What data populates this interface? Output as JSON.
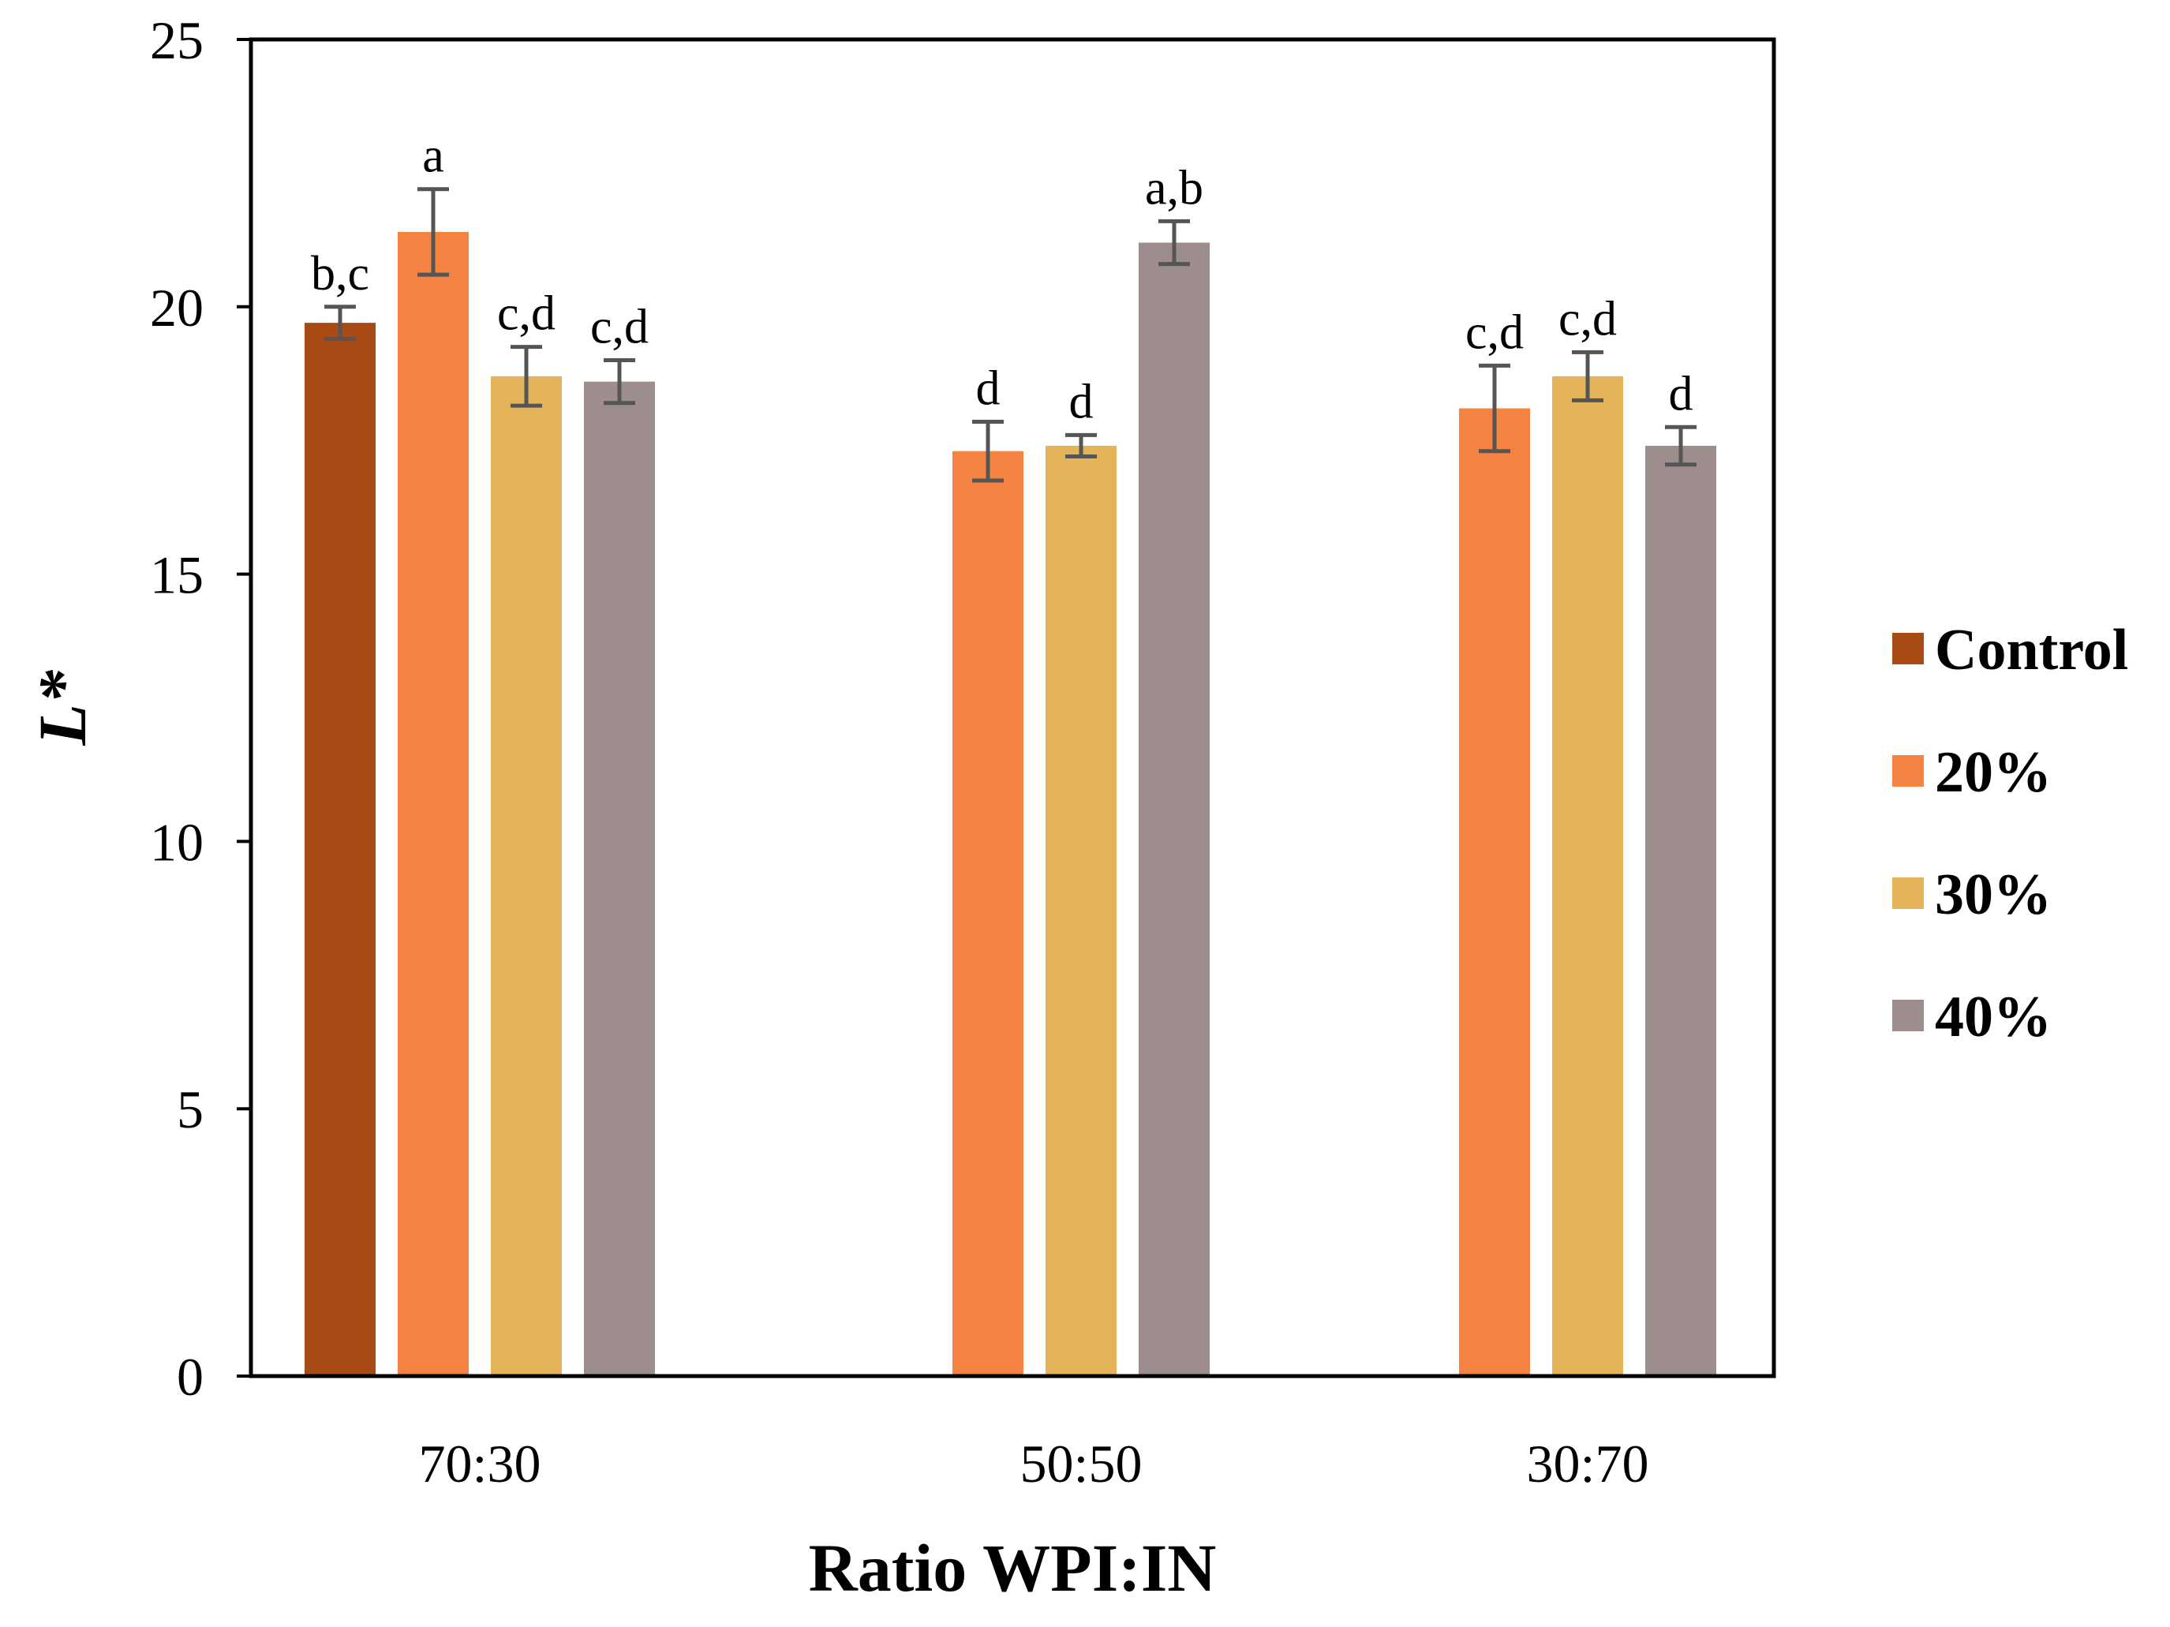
{
  "chart_data": {
    "type": "bar",
    "title": "",
    "xlabel": "Ratio WPI:IN",
    "ylabel": "L*",
    "ylim": [
      0,
      25
    ],
    "yticks": [
      0,
      5,
      10,
      15,
      20,
      25
    ],
    "ytick_labels": [
      "0",
      "5",
      "10",
      "15",
      "20",
      "25"
    ],
    "categories": [
      "70:30",
      "50:50",
      "30:70"
    ],
    "grid": false,
    "legend_position": "right",
    "series": [
      {
        "name": "Control",
        "color": "#A84A13",
        "values": [
          19.7,
          null,
          null
        ],
        "errors": [
          0.3,
          null,
          null
        ],
        "labels": [
          "b,c",
          null,
          null
        ]
      },
      {
        "name": "20%",
        "color": "#F58443",
        "values": [
          21.4,
          17.3,
          18.1
        ],
        "errors": [
          0.8,
          0.55,
          0.8
        ],
        "labels": [
          "a",
          "d",
          "c,d"
        ]
      },
      {
        "name": "30%",
        "color": "#E5B45A",
        "values": [
          18.7,
          17.4,
          18.7
        ],
        "errors": [
          0.55,
          0.2,
          0.45
        ],
        "labels": [
          "c,d",
          "d",
          "c,d"
        ]
      },
      {
        "name": "40%",
        "color": "#9E8D8D",
        "values": [
          18.6,
          21.2,
          17.4
        ],
        "errors": [
          0.4,
          0.4,
          0.35
        ],
        "labels": [
          "c,d",
          "a,b",
          "d"
        ]
      }
    ]
  }
}
